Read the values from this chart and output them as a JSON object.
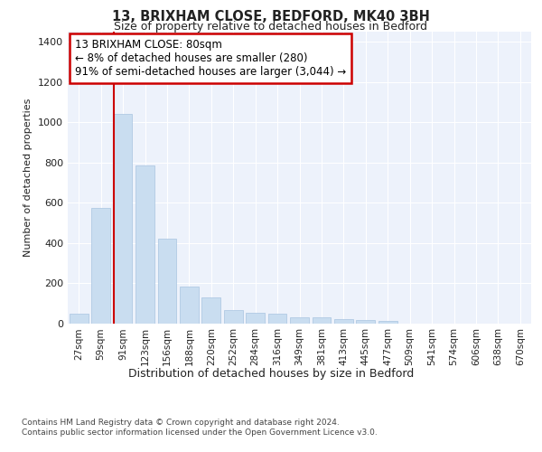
{
  "title_line1": "13, BRIXHAM CLOSE, BEDFORD, MK40 3BH",
  "title_line2": "Size of property relative to detached houses in Bedford",
  "xlabel": "Distribution of detached houses by size in Bedford",
  "ylabel": "Number of detached properties",
  "categories": [
    "27sqm",
    "59sqm",
    "91sqm",
    "123sqm",
    "156sqm",
    "188sqm",
    "220sqm",
    "252sqm",
    "284sqm",
    "316sqm",
    "349sqm",
    "381sqm",
    "413sqm",
    "445sqm",
    "477sqm",
    "509sqm",
    "541sqm",
    "574sqm",
    "606sqm",
    "638sqm",
    "670sqm"
  ],
  "values": [
    47,
    575,
    1040,
    785,
    420,
    180,
    130,
    63,
    50,
    47,
    30,
    27,
    22,
    15,
    12,
    0,
    0,
    0,
    0,
    0,
    0
  ],
  "bar_color": "#c9ddf0",
  "bar_edge_color": "#a8c4e0",
  "vline_color": "#cc0000",
  "annotation_text": "13 BRIXHAM CLOSE: 80sqm\n← 8% of detached houses are smaller (280)\n91% of semi-detached houses are larger (3,044) →",
  "annotation_box_color": "#ffffff",
  "annotation_box_edge": "#cc0000",
  "ylim": [
    0,
    1450
  ],
  "yticks": [
    0,
    200,
    400,
    600,
    800,
    1000,
    1200,
    1400
  ],
  "footer_line1": "Contains HM Land Registry data © Crown copyright and database right 2024.",
  "footer_line2": "Contains public sector information licensed under the Open Government Licence v3.0.",
  "bg_color": "#ffffff",
  "plot_bg_color": "#edf2fb",
  "grid_color": "#ffffff"
}
